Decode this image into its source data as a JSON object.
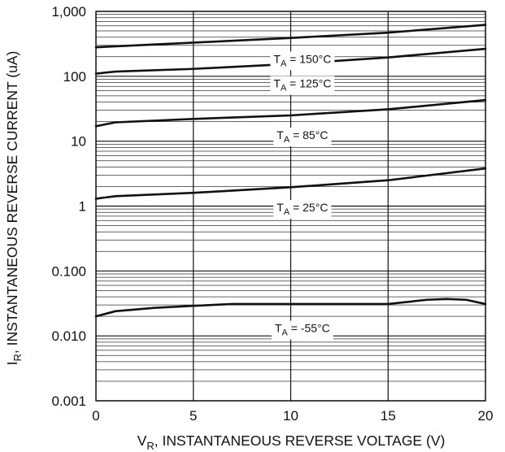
{
  "chart_data": {
    "type": "line",
    "title": "",
    "xlabel": {
      "symbol": "V",
      "subscript": "R",
      "text": ", INSTANTANEOUS REVERSE VOLTAGE (V)"
    },
    "ylabel": {
      "symbol": "I",
      "subscript": "R",
      "text": ", INSTANTANEOUS REVERSE CURRENT (uA)"
    },
    "xlim": [
      0,
      20
    ],
    "ylim": [
      0.001,
      1000
    ],
    "yscale": "log",
    "grid": true,
    "x_ticks": [
      "0",
      "5",
      "10",
      "15",
      "20"
    ],
    "y_ticks": [
      "0.001",
      "0.010",
      "0.100",
      "1",
      "10",
      "100",
      "1,000"
    ],
    "series": [
      {
        "name": {
          "symbol": "T",
          "subscript": "A",
          "text": " = 150°C"
        },
        "x": [
          0,
          5,
          10,
          15,
          20
        ],
        "y": [
          280,
          330,
          390,
          470,
          620
        ]
      },
      {
        "name": {
          "symbol": "T",
          "subscript": "A",
          "text": " = 125°C"
        },
        "x": [
          0,
          1,
          5,
          10,
          15,
          20
        ],
        "y": [
          110,
          118,
          130,
          155,
          195,
          265
        ]
      },
      {
        "name": {
          "symbol": "T",
          "subscript": "A",
          "text": " = 85°C"
        },
        "x": [
          0,
          1,
          5,
          10,
          15,
          20
        ],
        "y": [
          17,
          19.5,
          22,
          25,
          31,
          43
        ]
      },
      {
        "name": {
          "symbol": "T",
          "subscript": "A",
          "text": " = 25°C"
        },
        "x": [
          0,
          1,
          5,
          10,
          15,
          20
        ],
        "y": [
          1.3,
          1.42,
          1.6,
          1.95,
          2.5,
          3.8
        ]
      },
      {
        "name": {
          "symbol": "T",
          "subscript": "A",
          "text": " = -55°C"
        },
        "x": [
          0,
          1,
          3,
          5,
          7,
          10,
          13,
          15,
          17,
          18,
          19,
          20
        ],
        "y": [
          0.02,
          0.024,
          0.027,
          0.029,
          0.031,
          0.031,
          0.031,
          0.031,
          0.036,
          0.037,
          0.036,
          0.031
        ]
      }
    ]
  }
}
